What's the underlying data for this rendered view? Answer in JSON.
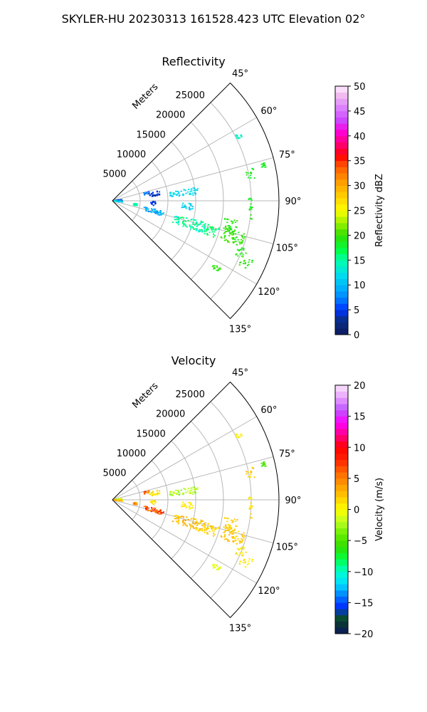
{
  "figure_title": "SKYLER-HU  20230313  161528.423 UTC Elevation 02°",
  "chart_data": [
    {
      "type": "polar-sector",
      "title": "Reflectivity",
      "range_label": "Meters",
      "range_ticks": [
        5000,
        10000,
        15000,
        20000,
        25000
      ],
      "range_tick_labels": [
        "5000",
        "10000",
        "15000",
        "20000",
        "25000"
      ],
      "azimuth_ticks": [
        45,
        60,
        75,
        90,
        105,
        120,
        135
      ],
      "azimuth_tick_labels": [
        "45°",
        "60°",
        "75°",
        "90°",
        "105°",
        "120°",
        "135°"
      ],
      "azimuth_range": [
        45,
        135
      ],
      "range_max": 30000,
      "grid": true,
      "colorbar": {
        "label": "Reflectivity dBZ",
        "min": 0,
        "max": 50,
        "ticks": [
          0,
          5,
          10,
          15,
          20,
          25,
          30,
          35,
          40,
          45,
          50
        ],
        "tick_labels": [
          "0",
          "5",
          "10",
          "15",
          "20",
          "25",
          "30",
          "35",
          "40",
          "45",
          "50"
        ],
        "stops": [
          [
            0,
            "#0b1a5c"
          ],
          [
            3,
            "#0a2e8a"
          ],
          [
            5,
            "#0033ff"
          ],
          [
            7,
            "#0077ff"
          ],
          [
            9,
            "#00aaff"
          ],
          [
            12,
            "#00ddee"
          ],
          [
            15,
            "#00ffaa"
          ],
          [
            17,
            "#00ff44"
          ],
          [
            20,
            "#33dd00"
          ],
          [
            22,
            "#88ee00"
          ],
          [
            25,
            "#ffff00"
          ],
          [
            28,
            "#ffcc00"
          ],
          [
            31,
            "#ff9900"
          ],
          [
            34,
            "#ff5500"
          ],
          [
            36,
            "#ff0000"
          ],
          [
            38,
            "#ff0066"
          ],
          [
            41,
            "#ff00dd"
          ],
          [
            43,
            "#cc44ff"
          ],
          [
            46,
            "#dd88ff"
          ],
          [
            48,
            "#f0b8f0"
          ],
          [
            50,
            "#ffeeff"
          ]
        ]
      },
      "clusters": [
        {
          "az": [
            82,
            92
          ],
          "r": [
            200,
            1700
          ],
          "value": [
            3,
            9
          ]
        },
        {
          "az": [
            92,
            100
          ],
          "r": [
            300,
            1900
          ],
          "value": [
            10,
            13
          ]
        },
        {
          "az": [
            76,
            80
          ],
          "r": [
            5800,
            6800
          ],
          "value": [
            5,
            12
          ]
        },
        {
          "az": [
            78,
            84
          ],
          "r": [
            6600,
            8600
          ],
          "value": [
            2,
            6
          ]
        },
        {
          "az": [
            91,
            97
          ],
          "r": [
            6600,
            7800
          ],
          "value": [
            3,
            6
          ]
        },
        {
          "az": [
            97,
            102
          ],
          "r": [
            3800,
            4600
          ],
          "value": [
            14,
            16
          ]
        },
        {
          "az": [
            101,
            107
          ],
          "r": [
            5800,
            9600
          ],
          "value": [
            7,
            12
          ]
        },
        {
          "az": [
            81,
            86
          ],
          "r": [
            10400,
            15500
          ],
          "value": [
            10,
            13
          ]
        },
        {
          "az": [
            92,
            97
          ],
          "r": [
            12500,
            14600
          ],
          "value": [
            10,
            13
          ]
        },
        {
          "az": [
            103,
            110
          ],
          "r": [
            11500,
            17500
          ],
          "value": [
            13,
            17
          ]
        },
        {
          "az": [
            104,
            110
          ],
          "r": [
            17500,
            20000
          ],
          "value": [
            15,
            18
          ]
        },
        {
          "az": [
            99,
            106
          ],
          "r": [
            20500,
            23000
          ],
          "value": [
            18,
            21
          ]
        },
        {
          "az": [
            104,
            110
          ],
          "r": [
            20500,
            25000
          ],
          "value": [
            18,
            21
          ]
        },
        {
          "az": [
            110,
            114
          ],
          "r": [
            24000,
            26000
          ],
          "value": [
            18,
            20
          ]
        },
        {
          "az": [
            89,
            98
          ],
          "r": [
            24500,
            25400
          ],
          "value": [
            17,
            20
          ]
        },
        {
          "az": [
            77,
            81
          ],
          "r": [
            24500,
            26000
          ],
          "value": [
            17,
            20
          ]
        },
        {
          "az": [
            76,
            78
          ],
          "r": [
            27500,
            28500
          ],
          "value": [
            17,
            20
          ]
        },
        {
          "az": [
            122,
            124
          ],
          "r": [
            21500,
            23000
          ],
          "value": [
            18,
            21
          ]
        },
        {
          "az": [
            62,
            64
          ],
          "r": [
            25000,
            26000
          ],
          "value": [
            13,
            15
          ]
        },
        {
          "az": [
            113,
            117
          ],
          "r": [
            25500,
            27500
          ],
          "value": [
            18,
            21
          ]
        }
      ]
    },
    {
      "type": "polar-sector",
      "title": "Velocity",
      "range_label": "Meters",
      "range_ticks": [
        5000,
        10000,
        15000,
        20000,
        25000
      ],
      "range_tick_labels": [
        "5000",
        "10000",
        "15000",
        "20000",
        "25000"
      ],
      "azimuth_ticks": [
        45,
        60,
        75,
        90,
        105,
        120,
        135
      ],
      "azimuth_tick_labels": [
        "45°",
        "60°",
        "75°",
        "90°",
        "105°",
        "120°",
        "135°"
      ],
      "azimuth_range": [
        45,
        135
      ],
      "range_max": 30000,
      "grid": true,
      "colorbar": {
        "label": "Velocity (m/s)",
        "min": -20,
        "max": 20,
        "ticks": [
          -20,
          -15,
          -10,
          -5,
          0,
          5,
          10,
          15,
          20
        ],
        "tick_labels": [
          "−20",
          "−15",
          "−10",
          "−5",
          "0",
          "5",
          "10",
          "15",
          "20"
        ],
        "stops": [
          [
            -20,
            "#0b1a5c"
          ],
          [
            -18,
            "#0a3a2a"
          ],
          [
            -17,
            "#0a5a3a"
          ],
          [
            -16,
            "#0022ff"
          ],
          [
            -14,
            "#0077ff"
          ],
          [
            -12,
            "#00ddff"
          ],
          [
            -10,
            "#00ffcc"
          ],
          [
            -8,
            "#00ff44"
          ],
          [
            -6,
            "#33dd00"
          ],
          [
            -4,
            "#66ee00"
          ],
          [
            -2,
            "#bbff22"
          ],
          [
            0,
            "#ffff00"
          ],
          [
            2,
            "#ffcc00"
          ],
          [
            4,
            "#ff9900"
          ],
          [
            6,
            "#ff6600"
          ],
          [
            8,
            "#ff2200"
          ],
          [
            10,
            "#ff0000"
          ],
          [
            12,
            "#ff0088"
          ],
          [
            14,
            "#ff00ff"
          ],
          [
            16,
            "#bb55ff"
          ],
          [
            18,
            "#e8a0ff"
          ],
          [
            20,
            "#fbe6fb"
          ]
        ]
      },
      "clusters": [
        {
          "az": [
            82,
            92
          ],
          "r": [
            200,
            1700
          ],
          "value": [
            -3,
            1
          ]
        },
        {
          "az": [
            92,
            100
          ],
          "r": [
            300,
            1900
          ],
          "value": [
            1,
            4
          ]
        },
        {
          "az": [
            76,
            80
          ],
          "r": [
            5800,
            6800
          ],
          "value": [
            4,
            10
          ]
        },
        {
          "az": [
            78,
            84
          ],
          "r": [
            6600,
            8600
          ],
          "value": [
            0,
            2
          ]
        },
        {
          "az": [
            91,
            97
          ],
          "r": [
            6600,
            7800
          ],
          "value": [
            0,
            2
          ]
        },
        {
          "az": [
            97,
            102
          ],
          "r": [
            3800,
            4600
          ],
          "value": [
            2,
            7
          ]
        },
        {
          "az": [
            101,
            107
          ],
          "r": [
            5800,
            9600
          ],
          "value": [
            3,
            11
          ]
        },
        {
          "az": [
            81,
            86
          ],
          "r": [
            10400,
            15500
          ],
          "value": [
            -4,
            -1
          ]
        },
        {
          "az": [
            92,
            97
          ],
          "r": [
            12500,
            14600
          ],
          "value": [
            0,
            2
          ]
        },
        {
          "az": [
            103,
            110
          ],
          "r": [
            11500,
            17500
          ],
          "value": [
            1,
            4
          ]
        },
        {
          "az": [
            104,
            110
          ],
          "r": [
            17500,
            20000
          ],
          "value": [
            1,
            3
          ]
        },
        {
          "az": [
            99,
            106
          ],
          "r": [
            20500,
            23000
          ],
          "value": [
            1,
            3
          ]
        },
        {
          "az": [
            104,
            110
          ],
          "r": [
            20500,
            25000
          ],
          "value": [
            1,
            3
          ]
        },
        {
          "az": [
            110,
            114
          ],
          "r": [
            24000,
            26000
          ],
          "value": [
            0,
            2
          ]
        },
        {
          "az": [
            89,
            98
          ],
          "r": [
            24500,
            25400
          ],
          "value": [
            0,
            2
          ]
        },
        {
          "az": [
            77,
            81
          ],
          "r": [
            24500,
            26000
          ],
          "value": [
            1,
            3
          ]
        },
        {
          "az": [
            76,
            78
          ],
          "r": [
            27500,
            28500
          ],
          "value": [
            -6,
            -4
          ]
        },
        {
          "az": [
            122,
            124
          ],
          "r": [
            21500,
            23000
          ],
          "value": [
            -2,
            0
          ]
        },
        {
          "az": [
            62,
            64
          ],
          "r": [
            25000,
            26000
          ],
          "value": [
            0,
            1
          ]
        },
        {
          "az": [
            113,
            117
          ],
          "r": [
            25500,
            27500
          ],
          "value": [
            0,
            2
          ]
        }
      ]
    }
  ]
}
